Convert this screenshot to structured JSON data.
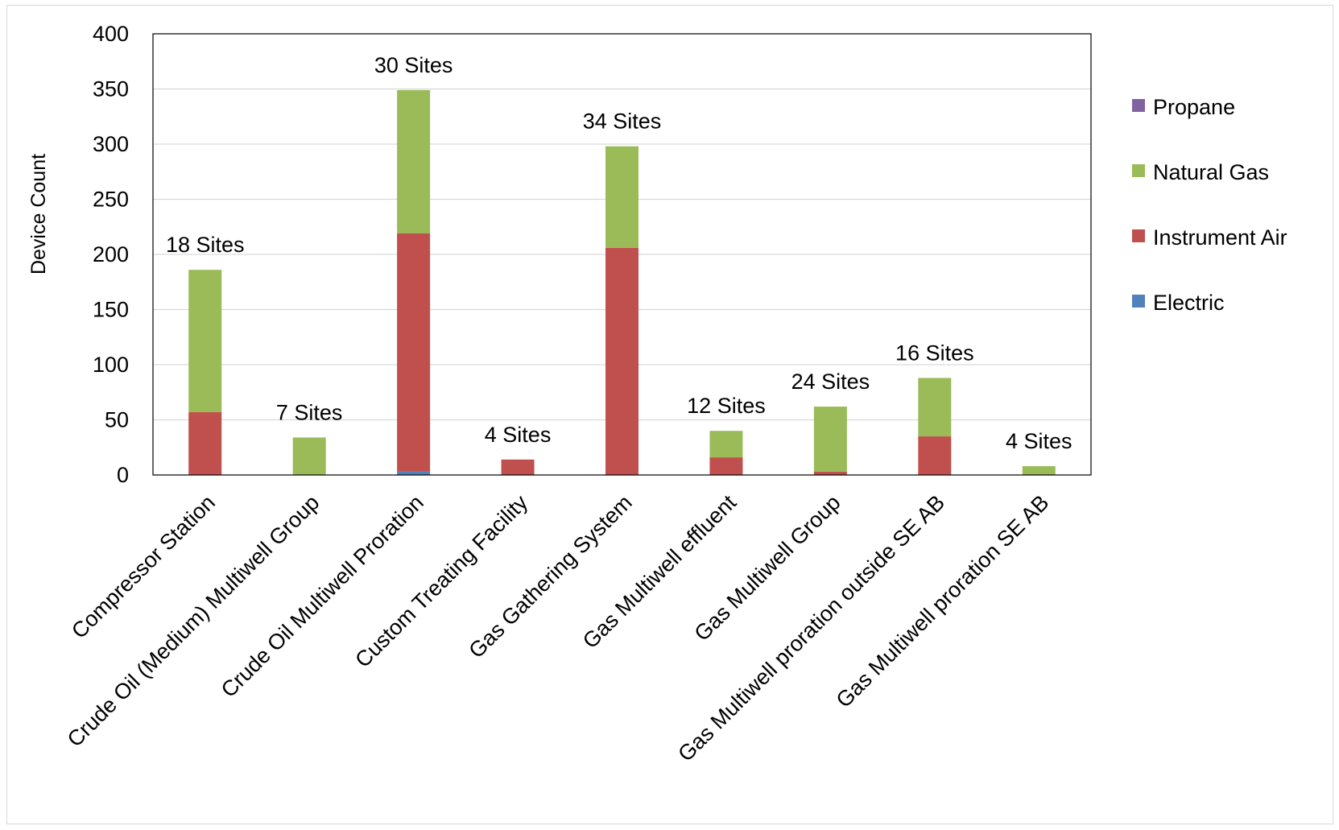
{
  "chart_data": {
    "type": "bar",
    "stacked": true,
    "title": "",
    "xlabel": "",
    "ylabel": "Device Count",
    "ylim": [
      0,
      400
    ],
    "yticks": [
      0,
      50,
      100,
      150,
      200,
      250,
      300,
      350,
      400
    ],
    "grid": true,
    "legend_position": "right",
    "categories": [
      "Compressor Station",
      "Crude Oil (Medium) Multiwell Group",
      "Crude Oil Multiwell Proration",
      "Custom Treating Facility",
      "Gas Gathering System",
      "Gas Multiwell effluent",
      "Gas Multiwell Group",
      "Gas Multiwell proration outside SE AB",
      "Gas Multiwell proration SE AB"
    ],
    "series": [
      {
        "name": "Electric",
        "color": "#4f81bd",
        "values": [
          0,
          0,
          3,
          0,
          0,
          0,
          0,
          0,
          0
        ]
      },
      {
        "name": "Instrument Air",
        "color": "#c0504d",
        "values": [
          57,
          0,
          216,
          14,
          206,
          16,
          3,
          35,
          0
        ]
      },
      {
        "name": "Natural Gas",
        "color": "#9bbb59",
        "values": [
          129,
          34,
          130,
          0,
          92,
          24,
          59,
          53,
          8
        ]
      },
      {
        "name": "Propane",
        "color": "#8064a2",
        "values": [
          0,
          0,
          0,
          0,
          0,
          0,
          0,
          0,
          0
        ]
      }
    ],
    "legend_order": [
      "Propane",
      "Natural Gas",
      "Instrument Air",
      "Electric"
    ],
    "annotations": [
      "18 Sites",
      "7 Sites",
      "30 Sites",
      "4 Sites",
      "34 Sites",
      "12 Sites",
      "24 Sites",
      "16 Sites",
      "4 Sites"
    ]
  }
}
